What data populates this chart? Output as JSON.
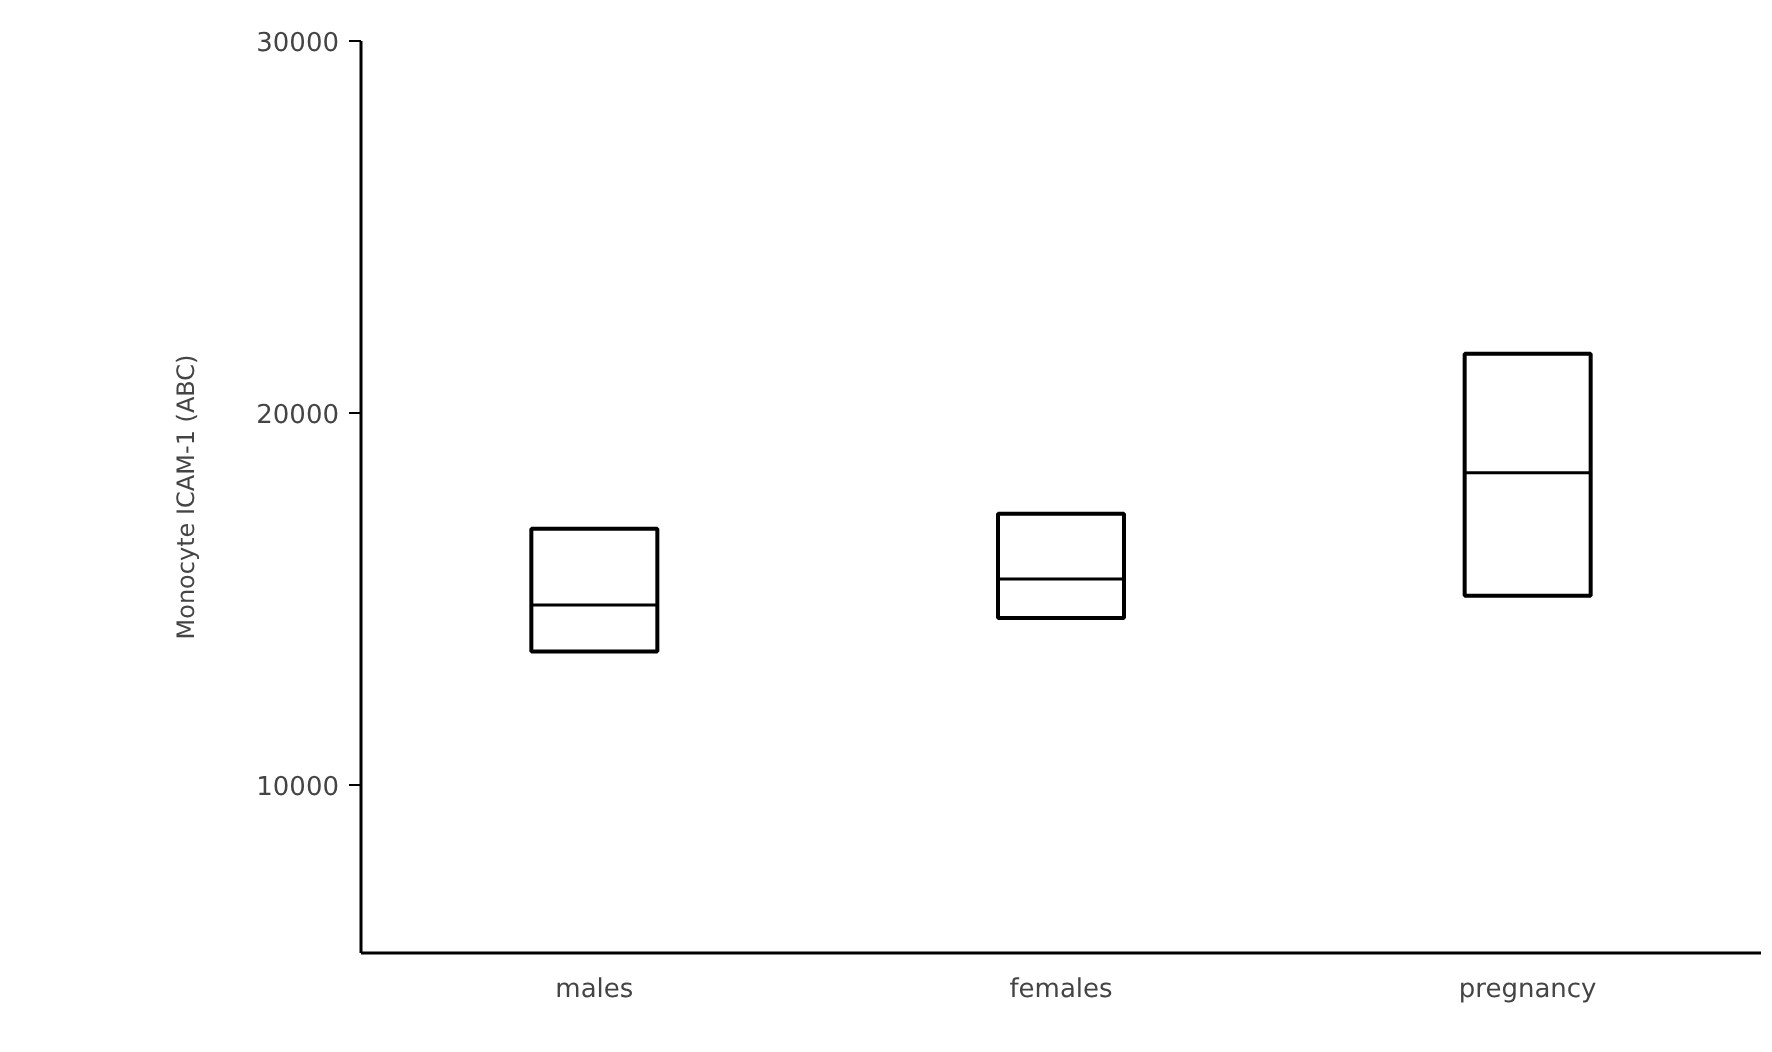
{
  "chart_data": {
    "type": "box",
    "ylabel": "Monocyte ICAM-1 (ABC)",
    "categories": [
      "males",
      "females",
      "pregnancy"
    ],
    "boxes": [
      {
        "low": 13600,
        "q1": 13600,
        "median": 14850,
        "q3": 16900,
        "high": 16900
      },
      {
        "low": 14500,
        "q1": 14500,
        "median": 15550,
        "q3": 17300,
        "high": 17300
      },
      {
        "low": 15100,
        "q1": 15100,
        "median": 18400,
        "q3": 21600,
        "high": 21600
      }
    ],
    "ylim": [
      5500,
      30000
    ],
    "yticks": [
      10000,
      20000,
      30000
    ],
    "grid": false
  }
}
